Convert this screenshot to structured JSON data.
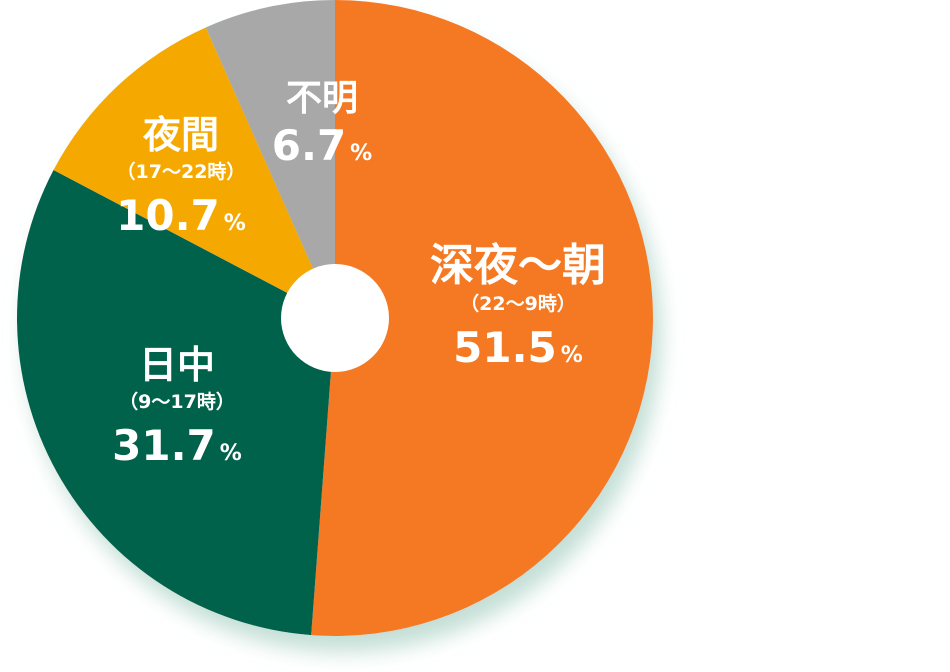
{
  "chart_data": {
    "type": "pie",
    "title": "",
    "slices": [
      {
        "label": "深夜～朝",
        "range": "（22～9時）",
        "value": 51.5,
        "value_text": "51.5",
        "unit": "%",
        "color": "#f47920"
      },
      {
        "label": "日中",
        "range": "（9～17時）",
        "value": 31.7,
        "value_text": "31.7",
        "unit": "%",
        "color": "#03624c"
      },
      {
        "label": "夜間",
        "range": "（17～22時）",
        "value": 10.7,
        "value_text": "10.7",
        "unit": "%",
        "color": "#f5a900"
      },
      {
        "label": "不明",
        "range": "",
        "value": 6.7,
        "value_text": "6.7",
        "unit": "%",
        "color": "#a8a8a8"
      }
    ],
    "start": "12 o'clock",
    "direction": "clockwise",
    "donut": true
  }
}
